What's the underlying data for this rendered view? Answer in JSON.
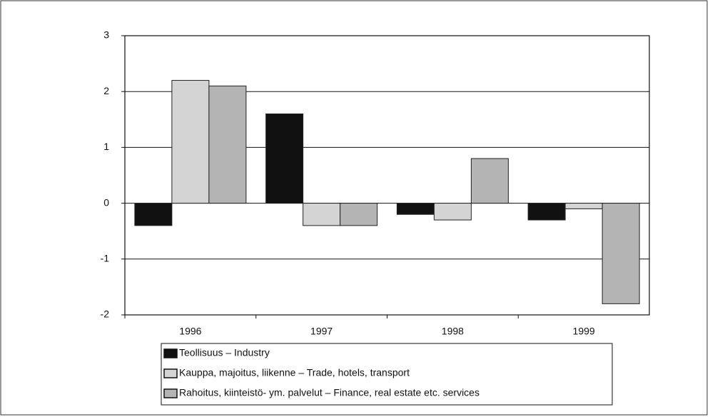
{
  "chart_data": {
    "type": "bar",
    "categories": [
      "1996",
      "1997",
      "1998",
      "1999"
    ],
    "series": [
      {
        "name": "Teollisuus – Industry",
        "color": "#111111",
        "values": [
          -0.4,
          1.6,
          -0.2,
          -0.3
        ]
      },
      {
        "name": "Kauppa, majoitus, liikenne – Trade, hotels, transport",
        "color": "#d4d4d4",
        "values": [
          2.2,
          -0.4,
          -0.3,
          -0.1
        ]
      },
      {
        "name": "Rahoitus, kiinteistö- ym. palvelut – Finance, real estate etc. services",
        "color": "#b4b4b4",
        "values": [
          2.1,
          -0.4,
          0.8,
          -1.8
        ]
      }
    ],
    "ylim": [
      -2,
      3
    ],
    "yticks": [
      -2,
      -1,
      0,
      1,
      2,
      3
    ],
    "grid": true
  }
}
